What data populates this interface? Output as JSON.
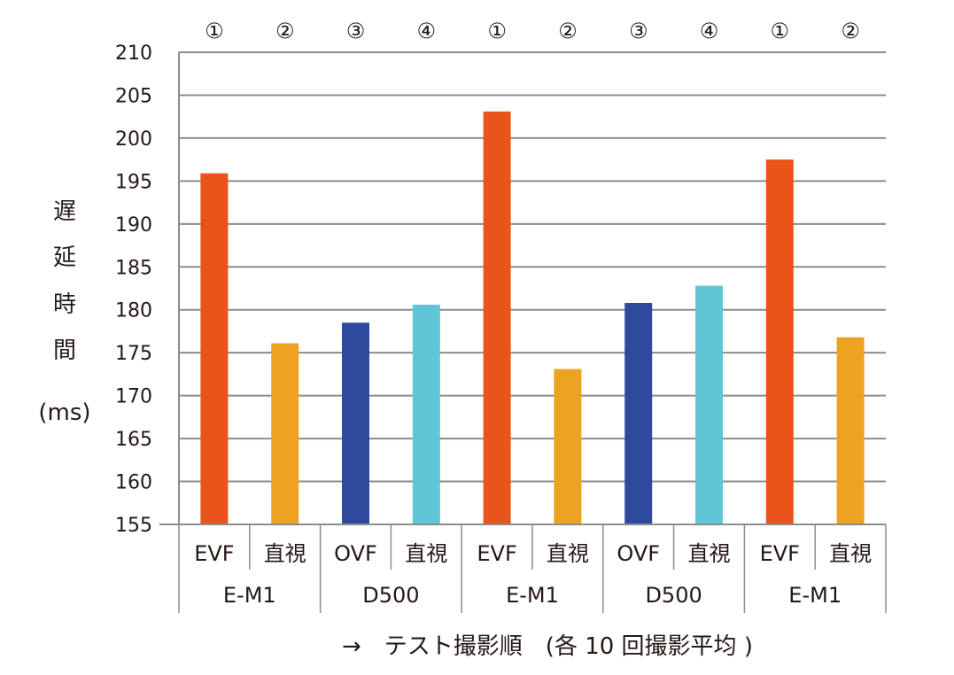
{
  "chart_data": {
    "type": "bar",
    "ylabel_chars": [
      "遅",
      "延",
      "時",
      "間"
    ],
    "ylabel_unit": "(ms)",
    "xlabel": "→　テスト撮影順　(各 10 回撮影平均 )",
    "ylim": [
      155,
      210
    ],
    "ytick_step": 5,
    "grid": true,
    "order_labels": [
      "①",
      "②",
      "③",
      "④",
      "①",
      "②",
      "③",
      "④",
      "①",
      "②"
    ],
    "categories": [
      "EVF",
      "直視",
      "OVF",
      "直視",
      "EVF",
      "直視",
      "OVF",
      "直視",
      "EVF",
      "直視"
    ],
    "groups": [
      "E-M1",
      "D500",
      "E-M1",
      "D500",
      "E-M1"
    ],
    "values": [
      195.9,
      176.1,
      178.5,
      180.6,
      203.1,
      173.1,
      180.8,
      182.8,
      197.5,
      176.8
    ],
    "colors": [
      "#e8541a",
      "#eca321",
      "#2f4a9c",
      "#5ec6d7",
      "#e8541a",
      "#eca321",
      "#2f4a9c",
      "#5ec6d7",
      "#e8541a",
      "#eca321"
    ]
  }
}
